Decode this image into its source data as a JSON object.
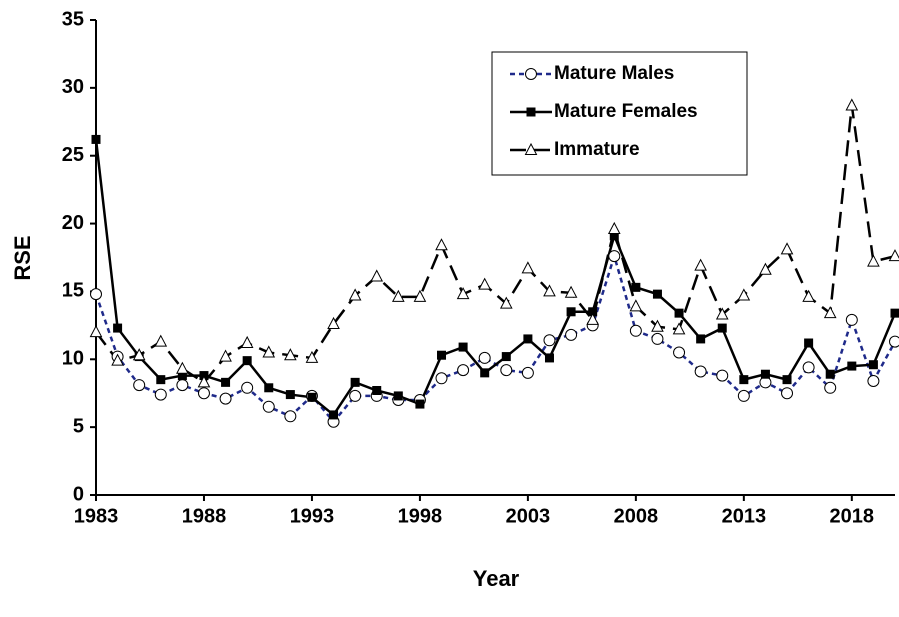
{
  "chart_data": {
    "type": "line",
    "x_label": "Year",
    "y_label": "RSE",
    "x": [
      1983,
      1984,
      1985,
      1986,
      1987,
      1988,
      1989,
      1990,
      1991,
      1992,
      1993,
      1994,
      1995,
      1996,
      1997,
      1998,
      1999,
      2000,
      2001,
      2002,
      2003,
      2004,
      2005,
      2006,
      2007,
      2008,
      2009,
      2010,
      2011,
      2012,
      2013,
      2014,
      2015,
      2016,
      2017,
      2018,
      2019,
      2020
    ],
    "series": [
      {
        "name": "Mature Males",
        "color": "#1f2a8a",
        "marker": "circle",
        "line_style": "dashed",
        "values": [
          14.8,
          10.2,
          8.1,
          7.4,
          8.1,
          7.5,
          7.1,
          7.9,
          6.5,
          5.8,
          7.3,
          5.4,
          7.3,
          7.3,
          7.0,
          7.0,
          8.6,
          9.2,
          10.1,
          9.2,
          9.0,
          11.4,
          11.8,
          12.5,
          17.6,
          12.1,
          11.5,
          10.5,
          9.1,
          8.8,
          7.3,
          8.3,
          7.5,
          9.4,
          7.9,
          12.9,
          8.4,
          11.3
        ]
      },
      {
        "name": "Mature Females",
        "color": "#000000",
        "marker": "square",
        "line_style": "solid",
        "values": [
          26.2,
          12.3,
          10.2,
          8.5,
          8.8,
          8.8,
          8.3,
          9.9,
          7.9,
          7.4,
          7.2,
          5.9,
          8.3,
          7.7,
          7.3,
          6.7,
          10.3,
          10.9,
          9.0,
          10.2,
          11.5,
          10.1,
          13.5,
          13.5,
          19.1,
          15.3,
          14.8,
          13.4,
          11.5,
          12.3,
          8.5,
          8.9,
          8.5,
          11.2,
          8.9,
          9.5,
          9.6,
          13.4
        ]
      },
      {
        "name": "Immature",
        "color": "#000000",
        "marker": "triangle",
        "line_style": "long-dash",
        "values": [
          12.0,
          9.9,
          10.3,
          11.3,
          9.3,
          8.3,
          10.2,
          11.2,
          10.5,
          10.3,
          10.1,
          12.6,
          14.7,
          16.1,
          14.6,
          14.6,
          18.4,
          14.8,
          15.5,
          14.1,
          16.7,
          15.0,
          14.9,
          12.9,
          19.6,
          13.9,
          12.4,
          12.2,
          16.9,
          13.3,
          14.7,
          16.6,
          18.1,
          14.6,
          13.4,
          28.7,
          17.2,
          17.6
        ]
      }
    ],
    "xlim": [
      1983,
      2020
    ],
    "xticks": [
      1983,
      1988,
      1993,
      1998,
      2003,
      2008,
      2013,
      2018
    ],
    "ylim": [
      0,
      35
    ],
    "yticks": [
      0,
      5,
      10,
      15,
      20,
      25,
      30,
      35
    ],
    "legend": "upper-right",
    "grid": false
  }
}
